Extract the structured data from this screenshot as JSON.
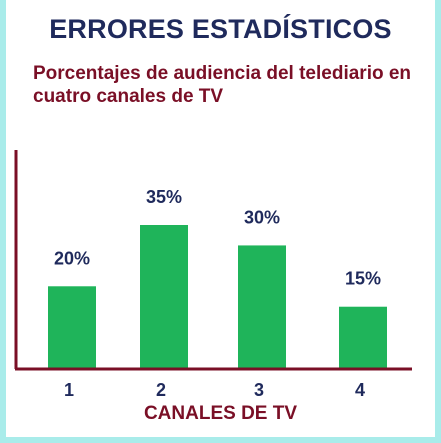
{
  "title": "ERRORES ESTADÍSTICOS",
  "chart_data": {
    "type": "bar",
    "title": "Porcentajes de audiencia del telediario en cuatro canales de TV",
    "xlabel": "CANALES DE TV",
    "ylabel": "",
    "categories": [
      "1",
      "2",
      "3",
      "4"
    ],
    "values": [
      20,
      35,
      30,
      15
    ],
    "data_labels": [
      "20%",
      "35%",
      "30%",
      "15%"
    ],
    "ylim": [
      0,
      50
    ],
    "grid": false,
    "bar_color": "#1fb45a",
    "axis_color": "#7a0f26"
  }
}
